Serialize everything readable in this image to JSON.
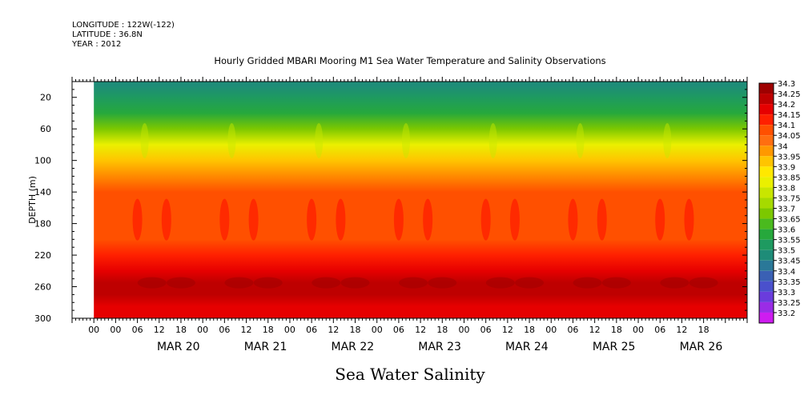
{
  "header": {
    "longitude": "LONGITUDE : 122W(-122)",
    "latitude": "LATITUDE : 36.8N",
    "year": "YEAR : 2012"
  },
  "chart_data": {
    "type": "heatmap",
    "title": "Hourly Gridded MBARI Mooring M1 Sea Water Temperature and Salinity Observations",
    "xlabel_title": "Sea Water Salinity",
    "ylabel": "DEPTH (m)",
    "y_inverted": true,
    "ylim": [
      0,
      300
    ],
    "yticks": [
      20,
      60,
      100,
      140,
      180,
      220,
      260,
      300
    ],
    "x_hour_ticks": [
      "00",
      "00",
      "06",
      "12",
      "18",
      "00",
      "06",
      "12",
      "18",
      "00",
      "06",
      "12",
      "18",
      "00",
      "06",
      "12",
      "18",
      "00",
      "06",
      "12",
      "18",
      "00",
      "06",
      "12",
      "18",
      "00",
      "06",
      "12",
      "18"
    ],
    "x_date_labels": [
      "MAR 20",
      "MAR 21",
      "MAR 22",
      "MAR 23",
      "MAR 24",
      "MAR 25",
      "MAR 26"
    ],
    "x_range_hours_from_mar19_00": [
      0,
      186
    ],
    "data_start_hour": 6,
    "colorbar": {
      "levels": [
        "34.3",
        "34.25",
        "34.2",
        "34.15",
        "34.1",
        "34.05",
        "34",
        "33.95",
        "33.9",
        "33.85",
        "33.8",
        "33.75",
        "33.7",
        "33.65",
        "33.6",
        "33.55",
        "33.5",
        "33.45",
        "33.4",
        "33.35",
        "33.3",
        "33.25",
        "33.2"
      ],
      "colors": [
        "#9e0000",
        "#be0000",
        "#e60000",
        "#ff2000",
        "#ff5000",
        "#ff6e10",
        "#ff9800",
        "#ffc400",
        "#ffe800",
        "#eaf000",
        "#c8e600",
        "#a6da00",
        "#7cc800",
        "#4aba1e",
        "#26a83c",
        "#1e9a60",
        "#1e8c78",
        "#2a7898",
        "#3a60b4",
        "#4a50cc",
        "#6a3cdc",
        "#9a2ce6",
        "#ce1cf0"
      ]
    },
    "profile": [
      {
        "depth": 5,
        "salinity": 33.5
      },
      {
        "depth": 20,
        "salinity": 33.55
      },
      {
        "depth": 40,
        "salinity": 33.62
      },
      {
        "depth": 60,
        "salinity": 33.72
      },
      {
        "depth": 80,
        "salinity": 33.84
      },
      {
        "depth": 100,
        "salinity": 33.94
      },
      {
        "depth": 115,
        "salinity": 34.02
      },
      {
        "depth": 140,
        "salinity": 34.1
      },
      {
        "depth": 200,
        "salinity": 34.11
      },
      {
        "depth": 220,
        "salinity": 34.17
      },
      {
        "depth": 240,
        "salinity": 34.22
      },
      {
        "depth": 255,
        "salinity": 34.27
      },
      {
        "depth": 270,
        "salinity": 34.24
      },
      {
        "depth": 285,
        "salinity": 34.2
      },
      {
        "depth": 300,
        "salinity": 34.18
      }
    ]
  }
}
